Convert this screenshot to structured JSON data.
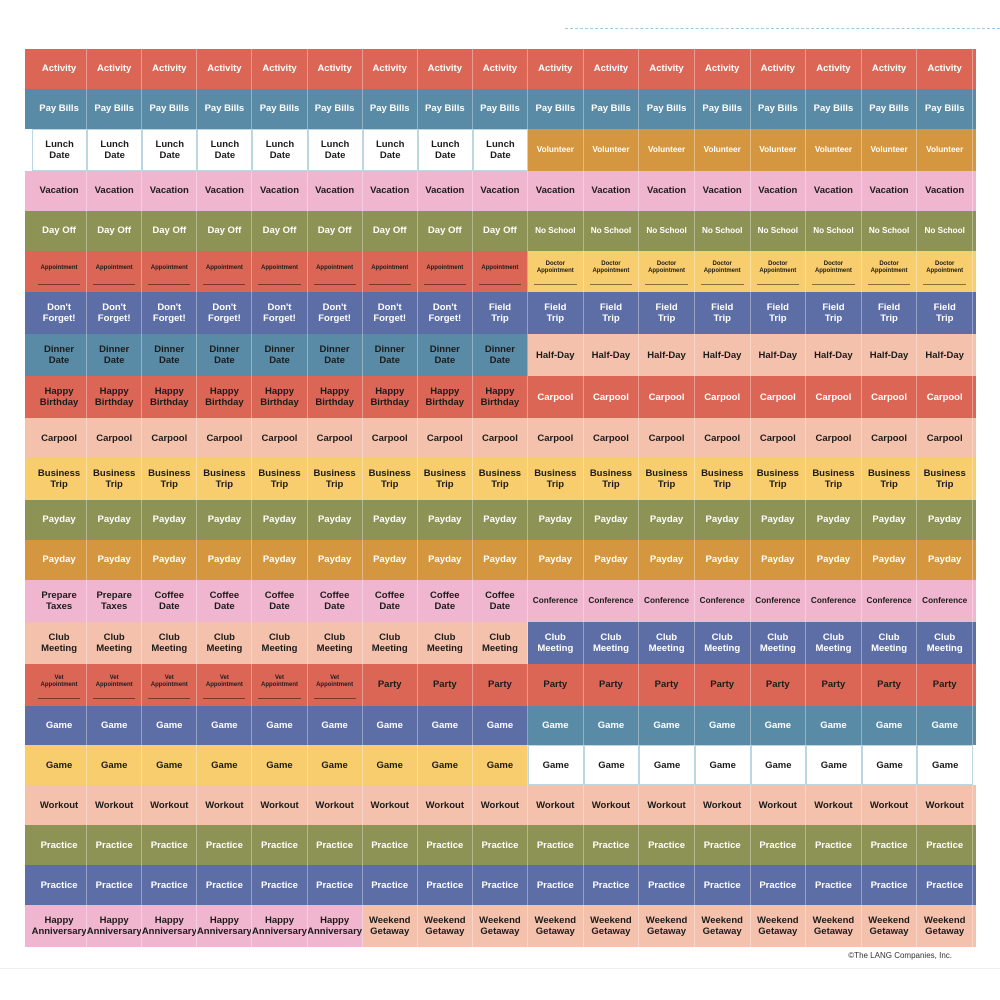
{
  "colors": {
    "red": "#dc6656",
    "teal": "#5a8ba6",
    "white": "#ffffff",
    "mustard": "#d4963e",
    "pink": "#f0b6cf",
    "olive": "#8c9354",
    "navy": "#5d6ea6",
    "peach": "#f4c2ac",
    "yellow": "#f8cd6e"
  },
  "rows": [
    {
      "a": {
        "label": "Activity",
        "color": "red",
        "count": 9,
        "light": true
      },
      "b": {
        "label": "Activity",
        "color": "red",
        "count": 8,
        "light": true
      }
    },
    {
      "a": {
        "label": "Pay Bills",
        "color": "teal",
        "count": 9,
        "light": true
      },
      "b": {
        "label": "Pay Bills",
        "color": "teal",
        "count": 8,
        "light": true
      }
    },
    {
      "a": {
        "label": "Lunch\nDate",
        "color": "white",
        "count": 9,
        "outlined": true
      },
      "b": {
        "label": "Volunteer",
        "color": "mustard",
        "count": 8,
        "light": true,
        "small": true
      }
    },
    {
      "a": {
        "label": "Vacation",
        "color": "pink",
        "count": 9
      },
      "b": {
        "label": "Vacation",
        "color": "pink",
        "count": 8
      }
    },
    {
      "a": {
        "label": "Day Off",
        "color": "olive",
        "count": 9,
        "light": true
      },
      "b": {
        "label": "No School",
        "color": "olive",
        "count": 8,
        "light": true,
        "small": true
      }
    },
    {
      "a": {
        "label": "Appointment",
        "color": "red",
        "count": 9,
        "tiny": true
      },
      "b": {
        "label": "Doctor\nAppointment",
        "color": "yellow",
        "count": 8,
        "tiny": true
      }
    },
    {
      "a": {
        "label": "Don't\nForget!",
        "color": "navy",
        "count": 8,
        "light": true
      },
      "a2": {
        "label": "Field\nTrip",
        "color": "navy",
        "count": 1,
        "light": true
      },
      "b": {
        "label": "Field\nTrip",
        "color": "navy",
        "count": 8,
        "light": true
      }
    },
    {
      "a": {
        "label": "Dinner\nDate",
        "color": "teal",
        "count": 9
      },
      "b": {
        "label": "Half-Day",
        "color": "peach",
        "count": 8
      }
    },
    {
      "a": {
        "label": "Happy\nBirthday",
        "color": "red",
        "count": 9
      },
      "b": {
        "label": "Carpool",
        "color": "red",
        "count": 8,
        "light": true
      }
    },
    {
      "a": {
        "label": "Carpool",
        "color": "peach",
        "count": 9
      },
      "b": {
        "label": "Carpool",
        "color": "peach",
        "count": 8
      }
    },
    {
      "a": {
        "label": "Business\nTrip",
        "color": "yellow",
        "count": 9
      },
      "b": {
        "label": "Business\nTrip",
        "color": "yellow",
        "count": 8
      }
    },
    {
      "a": {
        "label": "Payday",
        "color": "olive",
        "count": 9,
        "light": true
      },
      "b": {
        "label": "Payday",
        "color": "olive",
        "count": 8,
        "light": true
      }
    },
    {
      "a": {
        "label": "Payday",
        "color": "mustard",
        "count": 9,
        "light": true
      },
      "b": {
        "label": "Payday",
        "color": "mustard",
        "count": 8,
        "light": true
      }
    },
    {
      "a": {
        "label": "Prepare\nTaxes",
        "color": "pink",
        "count": 2
      },
      "a2": {
        "label": "Coffee\nDate",
        "color": "pink",
        "count": 7
      },
      "b": {
        "label": "Conference",
        "color": "pink",
        "count": 8,
        "small": true
      }
    },
    {
      "a": {
        "label": "Club\nMeeting",
        "color": "peach",
        "count": 9
      },
      "b": {
        "label": "Club\nMeeting",
        "color": "navy",
        "count": 8,
        "light": true
      }
    },
    {
      "a": {
        "label": "Vet\nAppointment",
        "color": "red",
        "count": 6,
        "tiny": true
      },
      "a2": {
        "label": "Party",
        "color": "red",
        "count": 3
      },
      "b": {
        "label": "Party",
        "color": "red",
        "count": 8
      }
    },
    {
      "a": {
        "label": "Game",
        "color": "navy",
        "count": 9,
        "light": true
      },
      "b": {
        "label": "Game",
        "color": "teal",
        "count": 8,
        "light": true
      }
    },
    {
      "a": {
        "label": "Game",
        "color": "yellow",
        "count": 9
      },
      "b": {
        "label": "Game",
        "color": "white",
        "count": 8,
        "outlined": true
      }
    },
    {
      "a": {
        "label": "Workout",
        "color": "peach",
        "count": 9
      },
      "b": {
        "label": "Workout",
        "color": "peach",
        "count": 8
      }
    },
    {
      "a": {
        "label": "Practice",
        "color": "olive",
        "count": 9,
        "light": true
      },
      "b": {
        "label": "Practice",
        "color": "olive",
        "count": 8,
        "light": true
      }
    },
    {
      "a": {
        "label": "Practice",
        "color": "navy",
        "count": 9,
        "light": true
      },
      "b": {
        "label": "Practice",
        "color": "navy",
        "count": 8,
        "light": true
      }
    },
    {
      "a": {
        "label": "Happy\nAnniversary",
        "color": "pink",
        "count": 6
      },
      "a2": {
        "label": "Weekend\nGetaway",
        "color": "peach",
        "count": 3
      },
      "b": {
        "label": "Weekend\nGetaway",
        "color": "peach",
        "count": 8
      }
    }
  ],
  "copyright": "©The LANG Companies, Inc."
}
